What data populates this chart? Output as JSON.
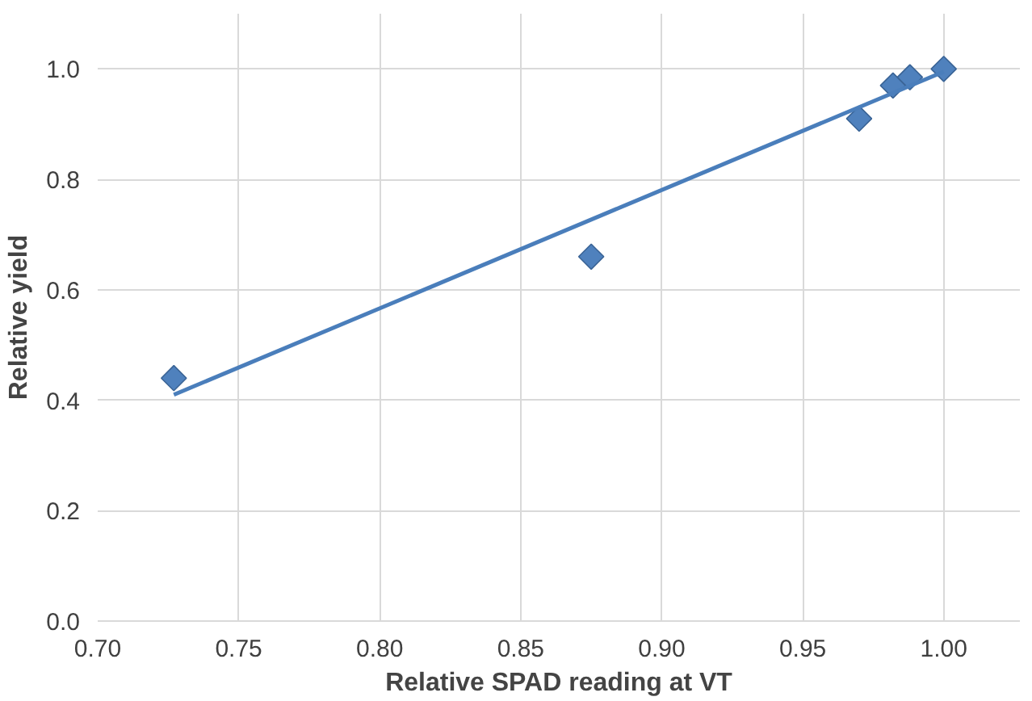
{
  "chart_data": {
    "type": "scatter",
    "xlabel": "Relative SPAD reading at VT",
    "ylabel": "Relative yield",
    "xlim": [
      0.7,
      1.027
    ],
    "ylim": [
      0,
      1.1
    ],
    "xticks": [
      {
        "value": 0.7,
        "label": "0.70"
      },
      {
        "value": 0.75,
        "label": "0.75"
      },
      {
        "value": 0.8,
        "label": "0.80"
      },
      {
        "value": 0.85,
        "label": "0.85"
      },
      {
        "value": 0.9,
        "label": "0.90"
      },
      {
        "value": 0.95,
        "label": "0.95"
      },
      {
        "value": 1.0,
        "label": "1.00"
      }
    ],
    "yticks": [
      {
        "value": 0,
        "label": "0.0"
      },
      {
        "value": 0.2,
        "label": "0.2"
      },
      {
        "value": 0.4,
        "label": "0.4"
      },
      {
        "value": 0.6,
        "label": "0.6"
      },
      {
        "value": 0.8,
        "label": "0.8"
      },
      {
        "value": 1.0,
        "label": "1.0"
      }
    ],
    "grid": true,
    "series": [
      {
        "marker": "diamond",
        "color": "#4f81bd",
        "x": [
          0.727,
          0.875,
          0.97,
          0.982,
          0.988,
          1.0
        ],
        "values": [
          0.44,
          0.66,
          0.91,
          0.97,
          0.985,
          1.0
        ]
      },
      {
        "type": "line",
        "marker": "none",
        "color": "#4a7ebb",
        "x": [
          0.727,
          1.0
        ],
        "values": [
          0.41,
          0.995
        ]
      }
    ]
  }
}
